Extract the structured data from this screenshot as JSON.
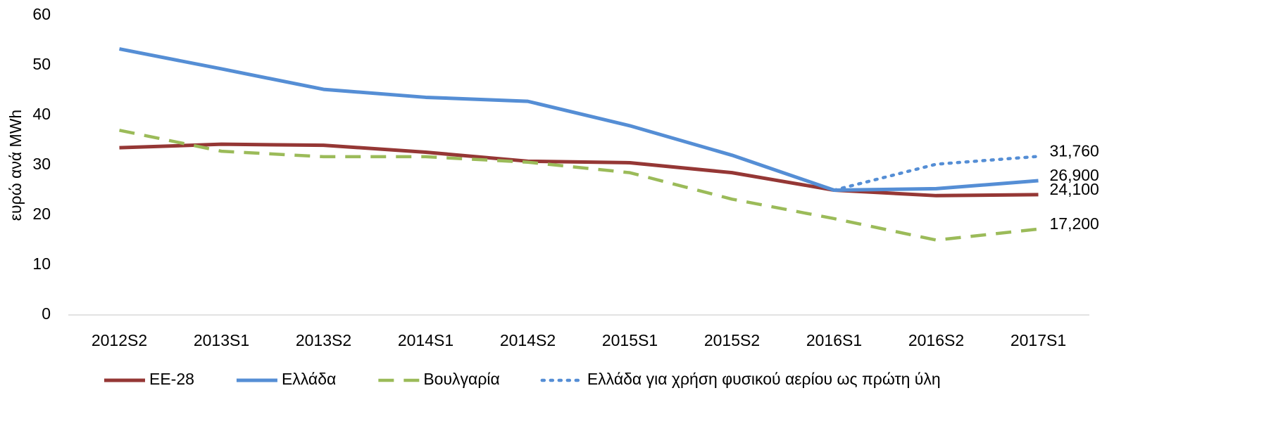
{
  "chart_data": {
    "type": "line",
    "ylabel": "ευρώ ανά MWh",
    "categories": [
      "2012S2",
      "2013S1",
      "2013S2",
      "2014S1",
      "2014S2",
      "2015S1",
      "2015S2",
      "2016S1",
      "2016S2",
      "2017S1"
    ],
    "series": [
      {
        "name": "ΕΕ-28",
        "color": "#953735",
        "style": "solid",
        "values": [
          33.5,
          34.2,
          34.0,
          32.6,
          30.8,
          30.5,
          28.5,
          25.0,
          23.9,
          24.1
        ],
        "value_labels": [
          null,
          null,
          null,
          null,
          null,
          null,
          null,
          null,
          null,
          "24,100"
        ]
      },
      {
        "name": "Ελλάδα",
        "color": "#558ed5",
        "style": "solid",
        "values": [
          53.3,
          49.3,
          45.2,
          43.6,
          42.8,
          37.9,
          32.0,
          25.0,
          25.3,
          26.9
        ],
        "value_labels": [
          null,
          null,
          null,
          null,
          null,
          null,
          null,
          null,
          null,
          "26,900"
        ]
      },
      {
        "name": "Βουλγαρία",
        "color": "#9bbb59",
        "style": "dashed",
        "values": [
          37.0,
          32.8,
          31.7,
          31.7,
          30.6,
          28.5,
          23.2,
          19.3,
          15.0,
          17.2
        ],
        "value_labels": [
          null,
          null,
          null,
          null,
          null,
          null,
          null,
          null,
          null,
          "17,200"
        ]
      },
      {
        "name": "Ελλάδα για χρήση φυσικού αερίου ως πρώτη ύλη",
        "color": "#558ed5",
        "style": "dotted",
        "values": [
          null,
          null,
          null,
          null,
          null,
          null,
          null,
          25.0,
          30.2,
          31.76
        ],
        "value_labels": [
          null,
          null,
          null,
          null,
          null,
          null,
          null,
          null,
          null,
          "31,760"
        ]
      }
    ],
    "ylim": [
      0,
      60
    ],
    "yticks": [
      0,
      10,
      20,
      30,
      40,
      50,
      60
    ],
    "grid": false,
    "legend": "bottom"
  }
}
